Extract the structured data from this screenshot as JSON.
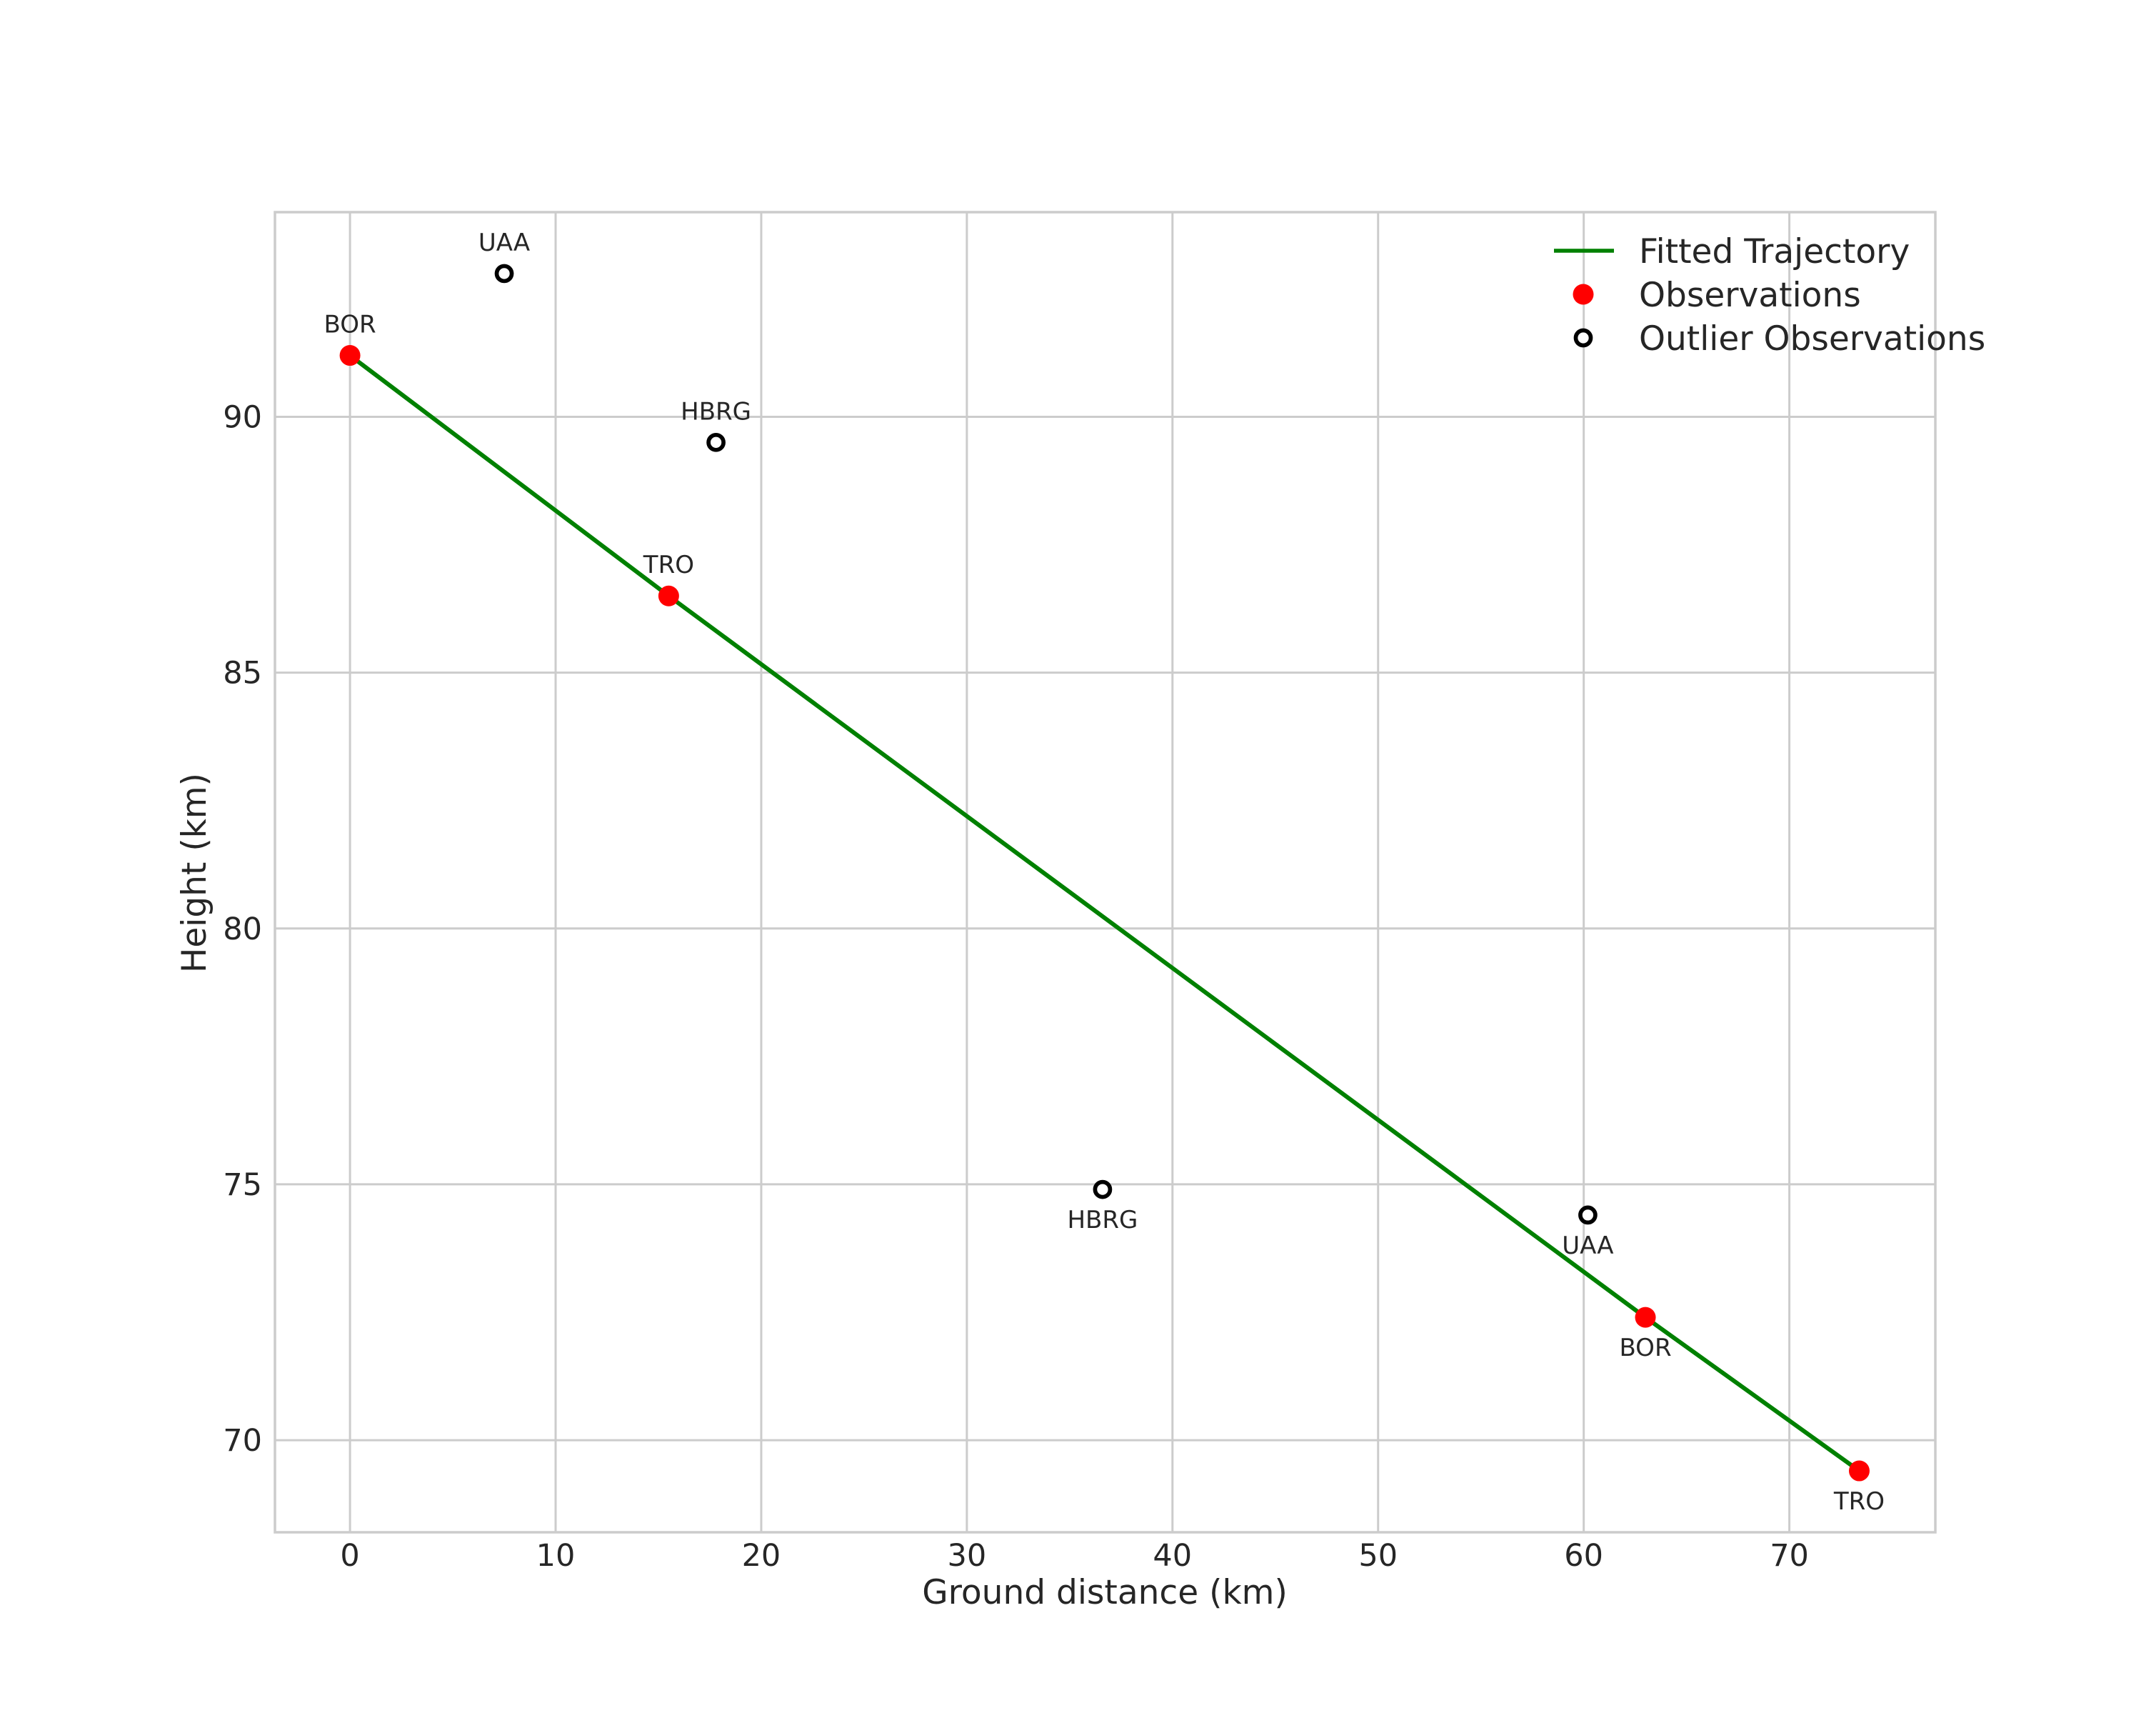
{
  "styles": {
    "background": "#ffffff",
    "text_color": "#262626",
    "grid_color": "#cccccc",
    "frame_color": "#cccccc",
    "trajectory_color": "#008000",
    "observation_color": "#ff0000",
    "outlier_color": "#000000"
  },
  "chart_data": {
    "type": "scatter",
    "title": "",
    "xlabel": "Ground distance (km)",
    "ylabel": "Height (km)",
    "xlim": [
      -3.65,
      77.1
    ],
    "ylim": [
      68.2,
      94.0
    ],
    "xticks": [
      0,
      10,
      20,
      30,
      40,
      50,
      60,
      70
    ],
    "yticks": [
      70,
      75,
      80,
      85,
      90
    ],
    "grid": true,
    "legend": {
      "position": "upper-right",
      "entries": [
        {
          "label": "Fitted Trajectory",
          "marker": "line",
          "color": "#008000"
        },
        {
          "label": "Observations",
          "marker": "filled-circle",
          "color": "#ff0000"
        },
        {
          "label": "Outlier Observations",
          "marker": "open-circle",
          "color": "#000000"
        }
      ]
    },
    "series": [
      {
        "name": "Fitted Trajectory",
        "type": "line",
        "color": "#008000",
        "points": [
          {
            "x": 0.0,
            "y": 91.2
          },
          {
            "x": 15.5,
            "y": 86.5
          },
          {
            "x": 63.0,
            "y": 72.4
          },
          {
            "x": 73.4,
            "y": 69.4
          }
        ]
      },
      {
        "name": "Observations",
        "type": "scatter",
        "marker": "filled-circle",
        "color": "#ff0000",
        "points": [
          {
            "x": 0.0,
            "y": 91.2,
            "station": "BOR",
            "label_side": "above"
          },
          {
            "x": 15.5,
            "y": 86.5,
            "station": "TRO",
            "label_side": "above"
          },
          {
            "x": 63.0,
            "y": 72.4,
            "station": "BOR",
            "label_side": "below"
          },
          {
            "x": 73.4,
            "y": 69.4,
            "station": "TRO",
            "label_side": "below"
          }
        ]
      },
      {
        "name": "Outlier Observations",
        "type": "scatter",
        "marker": "open-circle",
        "color": "#000000",
        "points": [
          {
            "x": 7.5,
            "y": 92.8,
            "station": "UAA",
            "label_side": "above"
          },
          {
            "x": 17.8,
            "y": 89.5,
            "station": "HBRG",
            "label_side": "above"
          },
          {
            "x": 36.6,
            "y": 74.9,
            "station": "HBRG",
            "label_side": "below"
          },
          {
            "x": 60.2,
            "y": 74.4,
            "station": "UAA",
            "label_side": "below"
          }
        ]
      }
    ]
  }
}
